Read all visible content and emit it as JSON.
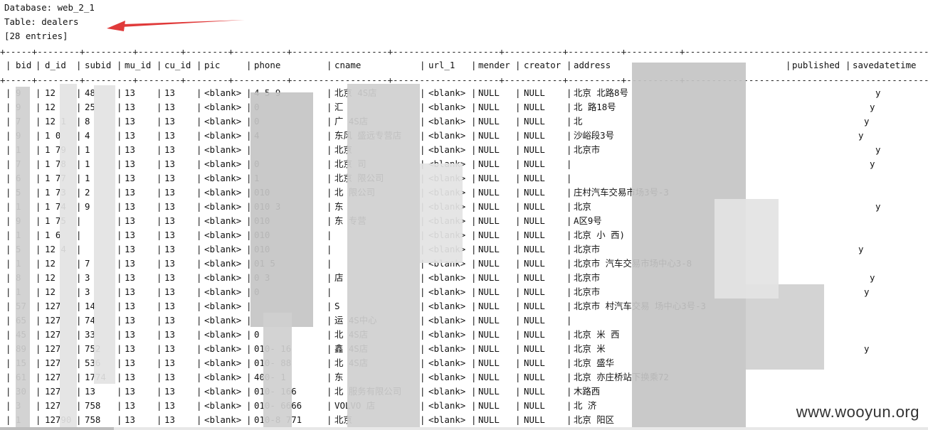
{
  "header": {
    "database_line": "Database: web_2_1",
    "table_line": "Table: dealers",
    "entries_line": "[28 entries]"
  },
  "table": {
    "columns": [
      "bid",
      "d_id",
      "subid",
      "mu_id",
      "cu_id",
      "pic",
      "phone",
      "cname",
      "url_1",
      "mender",
      "creator",
      "address",
      "published",
      "savedatetime"
    ],
    "rows": [
      {
        "bid": "9",
        "d_id": "12",
        "subid": "48",
        "mu_id": "13",
        "cu_id": "13",
        "pic": "<blank>",
        "phone": "4 5 9",
        "cname": "北京 4S店",
        "url_1": "<blank>",
        "mender": "NULL",
        "creator": "NULL",
        "address": "北京 北路8号",
        "published": "y"
      },
      {
        "bid": "9",
        "d_id": "12",
        "subid": "25",
        "mu_id": "13",
        "cu_id": "13",
        "pic": "<blank>",
        "phone": "0",
        "cname": "汇",
        "url_1": "<blank>",
        "mender": "NULL",
        "creator": "NULL",
        "address": "北 路18号",
        "published": "y"
      },
      {
        "bid": "7",
        "d_id": "12 1",
        "subid": "8",
        "mu_id": "13",
        "cu_id": "13",
        "pic": "<blank>",
        "phone": "0",
        "cname": "广 4S店",
        "url_1": "<blank>",
        "mender": "NULL",
        "creator": "NULL",
        "address": "北",
        "published": "y"
      },
      {
        "bid": "9",
        "d_id": "1 0",
        "subid": "4",
        "mu_id": "13",
        "cu_id": "13",
        "pic": "<blank>",
        "phone": "4",
        "cname": "东风 盛远专营店",
        "url_1": "<blank>",
        "mender": "NULL",
        "creator": "NULL",
        "address": "沙峪段3号",
        "published": "y"
      },
      {
        "bid": "1",
        "d_id": "1 79",
        "subid": "1",
        "mu_id": "13",
        "cu_id": "13",
        "pic": "<blank>",
        "phone": "",
        "cname": "北京",
        "url_1": "<blank>",
        "mender": "NULL",
        "creator": "NULL",
        "address": "北京市",
        "published": "y"
      },
      {
        "bid": "7",
        "d_id": "1 78",
        "subid": "1",
        "mu_id": "13",
        "cu_id": "13",
        "pic": "<blank>",
        "phone": "0",
        "cname": "北京 司",
        "url_1": "<blank>",
        "mender": "NULL",
        "creator": "NULL",
        "address": "",
        "published": "y"
      },
      {
        "bid": "6",
        "d_id": "1 77",
        "subid": "1",
        "mu_id": "13",
        "cu_id": "13",
        "pic": "<blank>",
        "phone": "1",
        "cname": "北京 限公司",
        "url_1": "<blank>",
        "mender": "NULL",
        "creator": "NULL",
        "address": "",
        "published": ""
      },
      {
        "bid": "5",
        "d_id": "1 73",
        "subid": "2",
        "mu_id": "13",
        "cu_id": "13",
        "pic": "<blank>",
        "phone": "010",
        "cname": "北 限公司",
        "url_1": "<blank>",
        "mender": "NULL",
        "creator": "NULL",
        "address": "庄村汽车交易市场3号-3",
        "published": ""
      },
      {
        "bid": "1",
        "d_id": "1 74",
        "subid": "9",
        "mu_id": "13",
        "cu_id": "13",
        "pic": "<blank>",
        "phone": "010 3",
        "cname": "东",
        "url_1": "<blank>",
        "mender": "NULL",
        "creator": "NULL",
        "address": "北京",
        "published": "y"
      },
      {
        "bid": "9",
        "d_id": "1 75",
        "subid": "",
        "mu_id": "13",
        "cu_id": "13",
        "pic": "<blank>",
        "phone": "010",
        "cname": "东 专营",
        "url_1": "<blank>",
        "mender": "NULL",
        "creator": "NULL",
        "address": "A区9号",
        "published": ""
      },
      {
        "bid": "1",
        "d_id": "1 6",
        "subid": "",
        "mu_id": "13",
        "cu_id": "13",
        "pic": "<blank>",
        "phone": "010",
        "cname": "",
        "url_1": "<blank>",
        "mender": "NULL",
        "creator": "NULL",
        "address": "北京 小 西)",
        "published": ""
      },
      {
        "bid": "5",
        "d_id": "12 4",
        "subid": "",
        "mu_id": "13",
        "cu_id": "13",
        "pic": "<blank>",
        "phone": "010",
        "cname": "",
        "url_1": "<blank>",
        "mender": "NULL",
        "creator": "NULL",
        "address": "北京市",
        "published": "y"
      },
      {
        "bid": "1",
        "d_id": "12",
        "subid": "7",
        "mu_id": "13",
        "cu_id": "13",
        "pic": "<blank>",
        "phone": "01 5",
        "cname": "",
        "url_1": "<blank>",
        "mender": "NULL",
        "creator": "NULL",
        "address": "北京市 汽车交易市场中心3-8",
        "published": ""
      },
      {
        "bid": "8",
        "d_id": "12",
        "subid": "3",
        "mu_id": "13",
        "cu_id": "13",
        "pic": "<blank>",
        "phone": "0 3",
        "cname": "店",
        "url_1": "<blank>",
        "mender": "NULL",
        "creator": "NULL",
        "address": "北京市",
        "published": "y"
      },
      {
        "bid": "1",
        "d_id": "12",
        "subid": "3",
        "mu_id": "13",
        "cu_id": "13",
        "pic": "<blank>",
        "phone": "0",
        "cname": "",
        "url_1": "<blank>",
        "mender": "NULL",
        "creator": "NULL",
        "address": "北京市",
        "published": "y"
      },
      {
        "bid": "57",
        "d_id": "127",
        "subid": "14",
        "mu_id": "13",
        "cu_id": "13",
        "pic": "<blank>",
        "phone": "",
        "cname": "S",
        "url_1": "<blank>",
        "mender": "NULL",
        "creator": "NULL",
        "address": "北京市 村汽车交易 场中心3号-3",
        "published": ""
      },
      {
        "bid": "65",
        "d_id": "127",
        "subid": "74",
        "mu_id": "13",
        "cu_id": "13",
        "pic": "<blank>",
        "phone": "",
        "cname": "运 4S中心",
        "url_1": "<blank>",
        "mender": "NULL",
        "creator": "NULL",
        "address": "",
        "published": ""
      },
      {
        "bid": "45",
        "d_id": "127",
        "subid": "33",
        "mu_id": "13",
        "cu_id": "13",
        "pic": "<blank>",
        "phone": "0",
        "cname": "北 4S店",
        "url_1": "<blank>",
        "mender": "NULL",
        "creator": "NULL",
        "address": "北京 米 西",
        "published": ""
      },
      {
        "bid": "89",
        "d_id": "127",
        "subid": "752",
        "mu_id": "13",
        "cu_id": "13",
        "pic": "<blank>",
        "phone": "010- 16",
        "cname": "鑫 4S店",
        "url_1": "<blank>",
        "mender": "NULL",
        "creator": "NULL",
        "address": "北京 米",
        "published": "y"
      },
      {
        "bid": "15",
        "d_id": "127",
        "subid": "536",
        "mu_id": "13",
        "cu_id": "13",
        "pic": "<blank>",
        "phone": "010- 88",
        "cname": "北 4S店",
        "url_1": "<blank>",
        "mender": "NULL",
        "creator": "NULL",
        "address": "北京 盛华",
        "published": ""
      },
      {
        "bid": "61",
        "d_id": "127",
        "subid": "1774",
        "mu_id": "13",
        "cu_id": "13",
        "pic": "<blank>",
        "phone": "400- 1",
        "cname": "东",
        "url_1": "<blank>",
        "mender": "NULL",
        "creator": "NULL",
        "address": "北京 亦庄桥站下换乘72",
        "published": ""
      },
      {
        "bid": "30",
        "d_id": "127",
        "subid": "13",
        "mu_id": "13",
        "cu_id": "13",
        "pic": "<blank>",
        "phone": "010- 166",
        "cname": "北 服务有限公司",
        "url_1": "<blank>",
        "mender": "NULL",
        "creator": "NULL",
        "address": "木路西",
        "published": ""
      },
      {
        "bid": "3",
        "d_id": "127",
        "subid": "758",
        "mu_id": "13",
        "cu_id": "13",
        "pic": "<blank>",
        "phone": "010- 6666",
        "cname": "VOLVO 店",
        "url_1": "<blank>",
        "mender": "NULL",
        "creator": "NULL",
        "address": "北 济",
        "published": ""
      },
      {
        "bid": "1",
        "d_id": "12790",
        "subid": "758",
        "mu_id": "13",
        "cu_id": "13",
        "pic": "<blank>",
        "phone": "010-8 771",
        "cname": "北京",
        "url_1": "<blank>",
        "mender": "NULL",
        "creator": "NULL",
        "address": "北京 阳区",
        "published": ""
      }
    ]
  },
  "watermark": "www.wooyun.org",
  "colors": {
    "annotation_arrow": "#e03a3a",
    "redaction": "#d0d0d0"
  }
}
